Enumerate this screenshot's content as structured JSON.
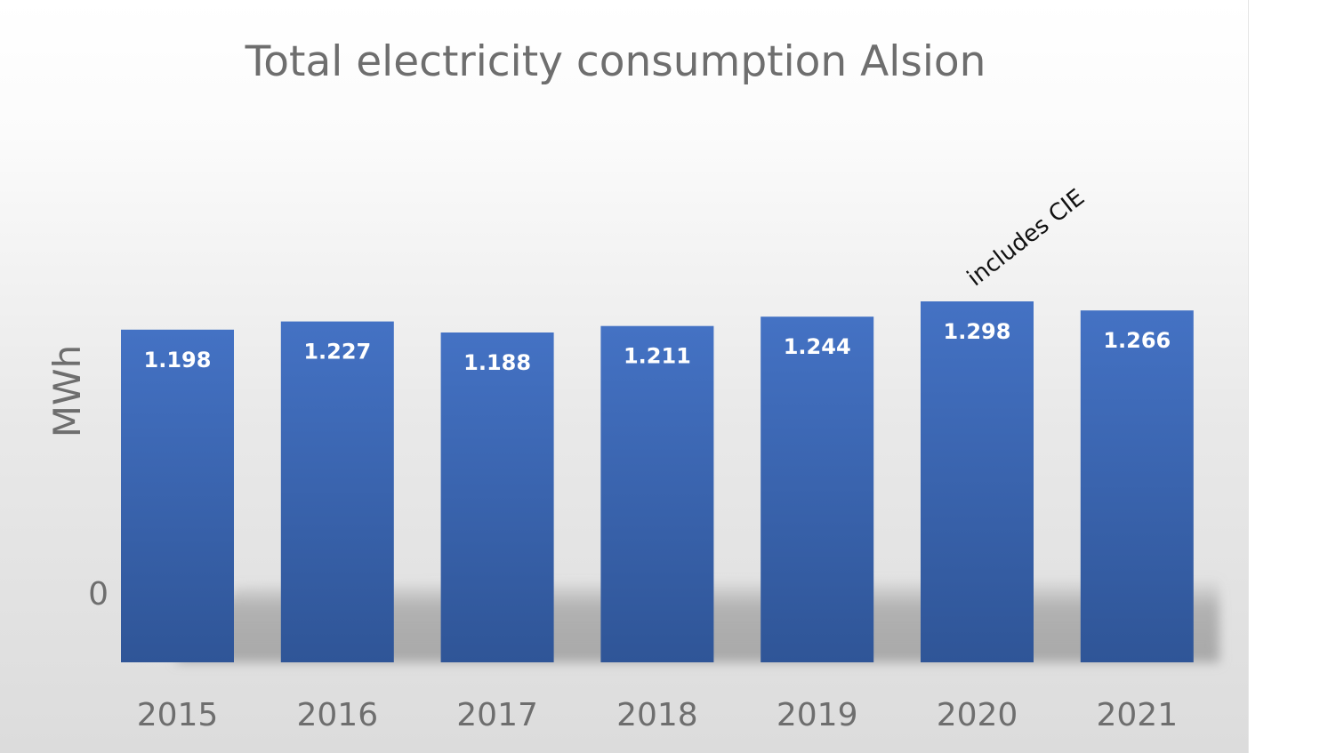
{
  "chart_data": {
    "type": "bar",
    "title": "Total electricity consumption Alsion",
    "xlabel": "",
    "ylabel": "MWh",
    "categories": [
      "2015",
      "2016",
      "2017",
      "2018",
      "2019",
      "2020",
      "2021"
    ],
    "values": [
      1198,
      1227,
      1188,
      1211,
      1244,
      1298,
      1266
    ],
    "value_labels": [
      "1.198",
      "1.227",
      "1.188",
      "1.211",
      "1.244",
      "1.298",
      "1.266"
    ],
    "y_tick_labels": [
      "0"
    ],
    "annotations": [
      {
        "category": "2020",
        "text": "includes CIE"
      }
    ],
    "bar_color": "#4472c4",
    "bar_color_dark": "#2f5597",
    "grid": false,
    "legend": "none"
  }
}
